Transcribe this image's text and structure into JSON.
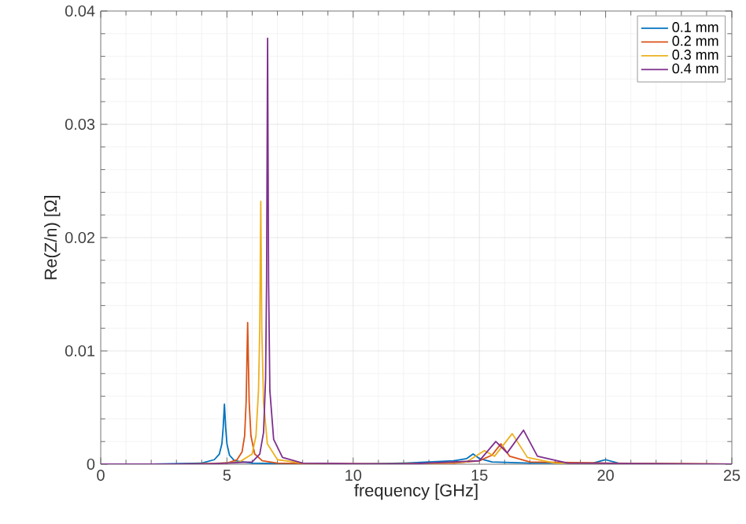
{
  "chart_data": {
    "type": "line",
    "xlabel": "frequency [GHz]",
    "ylabel": "Re(Z/n) [Ω]",
    "xlim": [
      0,
      25
    ],
    "ylim": [
      0,
      0.04
    ],
    "xticks": [
      0,
      5,
      10,
      15,
      20,
      25
    ],
    "yticks": [
      0,
      0.01,
      0.02,
      0.03,
      0.04
    ],
    "grid": true,
    "legend": "top right",
    "series": [
      {
        "name": "0.1 mm",
        "color": "#0072bd",
        "x": [
          0,
          2,
          4,
          4.5,
          4.7,
          4.8,
          4.85,
          4.9,
          4.95,
          5.0,
          5.1,
          5.3,
          6,
          8,
          10,
          12,
          14,
          14.5,
          14.75,
          15,
          15.5,
          17,
          19.5,
          20,
          20.5,
          23,
          25
        ],
        "values": [
          0,
          0,
          0.0001,
          0.0004,
          0.0009,
          0.0018,
          0.0032,
          0.0053,
          0.0032,
          0.0018,
          0.0008,
          0.0003,
          0.0001,
          0,
          0,
          0.0001,
          0.0003,
          0.0005,
          0.0009,
          0.0005,
          0.0002,
          0.0001,
          0.0001,
          0.0004,
          0.0001,
          0,
          0
        ]
      },
      {
        "name": "0.2 mm",
        "color": "#d95319",
        "x": [
          0,
          3,
          5,
          5.4,
          5.6,
          5.7,
          5.76,
          5.82,
          5.88,
          5.95,
          6.1,
          6.4,
          7,
          10,
          14,
          15,
          15.5,
          15.85,
          16.2,
          17,
          20,
          25
        ],
        "values": [
          0,
          0,
          0.0001,
          0.0004,
          0.0011,
          0.0025,
          0.0055,
          0.0125,
          0.0055,
          0.0025,
          0.0009,
          0.0003,
          0.0001,
          0,
          0.0001,
          0.0003,
          0.0008,
          0.0018,
          0.0007,
          0.0002,
          0.0001,
          0
        ]
      },
      {
        "name": "0.3 mm",
        "color": "#edb120",
        "x": [
          0,
          4,
          5.5,
          6,
          6.15,
          6.25,
          6.3,
          6.34,
          6.38,
          6.45,
          6.6,
          7,
          8,
          12,
          14.5,
          15.2,
          15.6,
          16.3,
          16.9,
          18,
          25
        ],
        "values": [
          0,
          0,
          0.0002,
          0.0009,
          0.0025,
          0.0065,
          0.012,
          0.0232,
          0.012,
          0.0055,
          0.0018,
          0.0004,
          0.0001,
          0,
          0.0002,
          0.0012,
          0.0007,
          0.0027,
          0.0006,
          0.0001,
          0
        ]
      },
      {
        "name": "0.4 mm",
        "color": "#7e2f8e",
        "x": [
          0,
          4,
          6,
          6.3,
          6.45,
          6.53,
          6.57,
          6.61,
          6.65,
          6.7,
          6.85,
          7.2,
          8,
          12,
          15,
          15.65,
          16.1,
          16.75,
          17.3,
          18.5,
          25
        ],
        "values": [
          0,
          0,
          0.0002,
          0.0009,
          0.0028,
          0.0075,
          0.016,
          0.0376,
          0.016,
          0.0065,
          0.0022,
          0.0006,
          0.0001,
          0,
          0.0003,
          0.002,
          0.001,
          0.003,
          0.0007,
          0.0001,
          0
        ]
      }
    ]
  }
}
